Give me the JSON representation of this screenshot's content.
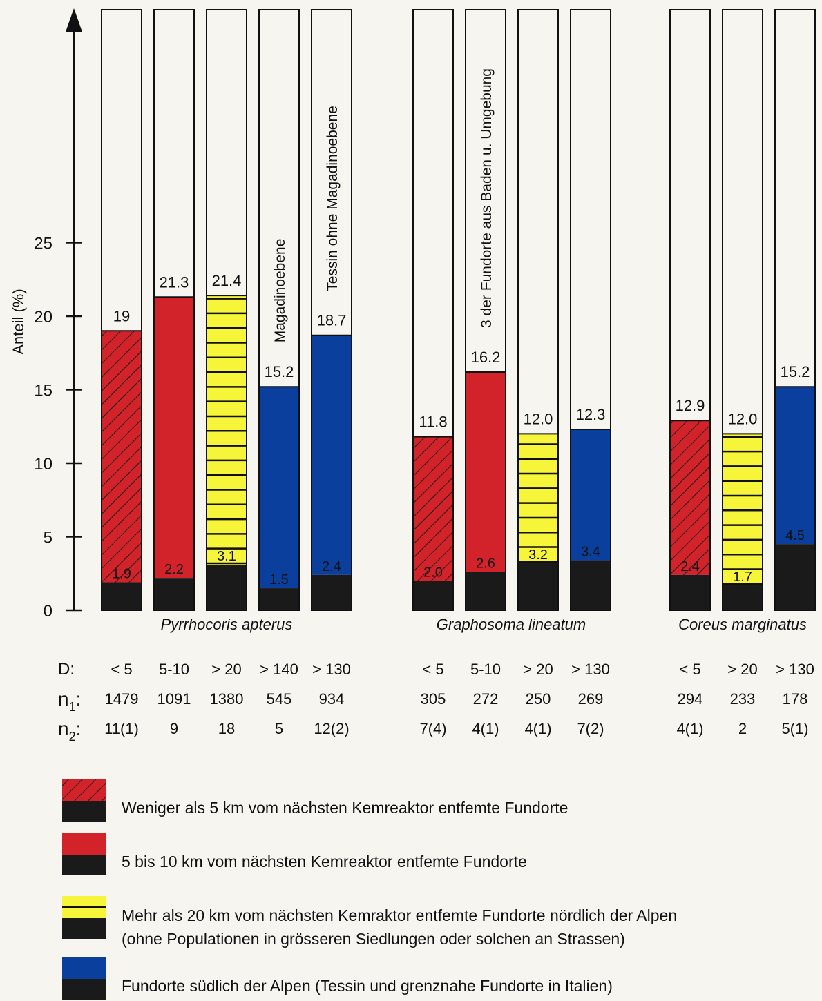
{
  "chart_data": {
    "type": "bar",
    "title": "",
    "ylabel": "Anteil (%)",
    "yticks": [
      0,
      5,
      10,
      15,
      20,
      25
    ],
    "ylim": [
      0,
      25
    ],
    "colors": {
      "red": "#d2232a",
      "yellow": "#f7f53a",
      "blue": "#0b3f9e",
      "black": "#1a1a1a"
    },
    "row_labels": {
      "d": "D:",
      "n1": "n",
      "n1_sub": "1",
      "n2": "n",
      "n2_sub": "2",
      "colon": ":"
    },
    "groups": [
      {
        "species": "Pyrrhocoris apterus",
        "bars": [
          {
            "category": "< 5",
            "series": "hatched-red",
            "value": 19,
            "value_label": "19",
            "dark": 1.9,
            "dark_label": "1.9",
            "n1": "1479",
            "n2": "11(1)",
            "note": ""
          },
          {
            "category": "5-10",
            "series": "red",
            "value": 21.3,
            "value_label": "21.3",
            "dark": 2.2,
            "dark_label": "2.2",
            "n1": "1091",
            "n2": "9",
            "note": ""
          },
          {
            "category": "> 20",
            "series": "yellow",
            "value": 21.4,
            "value_label": "21.4",
            "dark": 3.1,
            "dark_label": "3.1",
            "n1": "1380",
            "n2": "18",
            "note": ""
          },
          {
            "category": "> 140",
            "series": "blue",
            "value": 15.2,
            "value_label": "15.2",
            "dark": 1.5,
            "dark_label": "1.5",
            "n1": "545",
            "n2": "5",
            "note": "Magadinoebene"
          },
          {
            "category": "> 130",
            "series": "blue",
            "value": 18.7,
            "value_label": "18.7",
            "dark": 2.4,
            "dark_label": "2.4",
            "n1": "934",
            "n2": "12(2)",
            "note": "Tessin ohne Magadinoebene"
          }
        ]
      },
      {
        "species": "Graphosoma lineatum",
        "bars": [
          {
            "category": "< 5",
            "series": "hatched-red",
            "value": 11.8,
            "value_label": "11.8",
            "dark": 2.0,
            "dark_label": "2.0",
            "n1": "305",
            "n2": "7(4)",
            "note": ""
          },
          {
            "category": "5-10",
            "series": "red",
            "value": 16.2,
            "value_label": "16.2",
            "dark": 2.6,
            "dark_label": "2.6",
            "n1": "272",
            "n2": "4(1)",
            "note": "3 der Fundorte aus Baden u. Umgebung"
          },
          {
            "category": "> 20",
            "series": "yellow",
            "value": 12.0,
            "value_label": "12.0",
            "dark": 3.2,
            "dark_label": "3.2",
            "n1": "250",
            "n2": "4(1)",
            "note": ""
          },
          {
            "category": "> 130",
            "series": "blue",
            "value": 12.3,
            "value_label": "12.3",
            "dark": 3.4,
            "dark_label": "3.4",
            "n1": "269",
            "n2": "7(2)",
            "note": ""
          }
        ]
      },
      {
        "species": "Coreus marginatus",
        "bars": [
          {
            "category": "< 5",
            "series": "hatched-red",
            "value": 12.9,
            "value_label": "12.9",
            "dark": 2.4,
            "dark_label": "2.4",
            "n1": "294",
            "n2": "4(1)",
            "note": ""
          },
          {
            "category": "> 20",
            "series": "yellow",
            "value": 12.0,
            "value_label": "12.0",
            "dark": 1.7,
            "dark_label": "1.7",
            "n1": "233",
            "n2": "2",
            "note": ""
          },
          {
            "category": "> 130",
            "series": "blue",
            "value": 15.2,
            "value_label": "15.2",
            "dark": 4.5,
            "dark_label": "4.5",
            "n1": "178",
            "n2": "5(1)",
            "note": ""
          }
        ]
      }
    ],
    "legend": [
      {
        "series": "hatched-red",
        "lines": [
          "Weniger als 5 km vom nächsten Kemreaktor entfemte Fundorte"
        ]
      },
      {
        "series": "red",
        "lines": [
          "5 bis 10 km vom nächsten Kemreaktor entfemte Fundorte"
        ]
      },
      {
        "series": "yellow",
        "lines": [
          "Mehr als 20 km vom nächsten Kemraktor entfemte Fundorte nördlich der Alpen",
          "(ohne Populationen in grösseren Siedlungen oder solchen an Strassen)"
        ]
      },
      {
        "series": "blue",
        "lines": [
          "Fundorte südlich der Alpen (Tessin und grenznahe Fundorte in Italien)"
        ]
      }
    ]
  }
}
